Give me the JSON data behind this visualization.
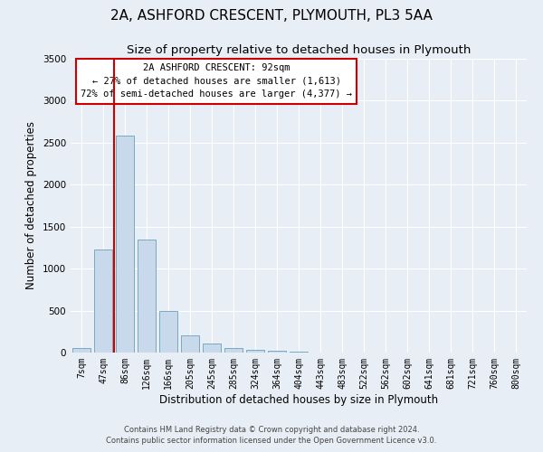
{
  "title": "2A, ASHFORD CRESCENT, PLYMOUTH, PL3 5AA",
  "subtitle": "Size of property relative to detached houses in Plymouth",
  "xlabel": "Distribution of detached houses by size in Plymouth",
  "ylabel": "Number of detached properties",
  "bar_labels": [
    "7sqm",
    "47sqm",
    "86sqm",
    "126sqm",
    "166sqm",
    "205sqm",
    "245sqm",
    "285sqm",
    "324sqm",
    "364sqm",
    "404sqm",
    "443sqm",
    "483sqm",
    "522sqm",
    "562sqm",
    "602sqm",
    "641sqm",
    "681sqm",
    "721sqm",
    "760sqm",
    "800sqm"
  ],
  "bar_values": [
    50,
    1230,
    2590,
    1350,
    500,
    200,
    110,
    50,
    30,
    20,
    10,
    5,
    3,
    0,
    0,
    0,
    0,
    0,
    0,
    0,
    0
  ],
  "bar_color": "#c8d9eb",
  "bar_edge_color": "#7aaabf",
  "marker_color": "#cc0000",
  "annotation_text_line1": "2A ASHFORD CRESCENT: 92sqm",
  "annotation_text_line2": "← 27% of detached houses are smaller (1,613)",
  "annotation_text_line3": "72% of semi-detached houses are larger (4,377) →",
  "ylim": [
    0,
    3500
  ],
  "yticks": [
    0,
    500,
    1000,
    1500,
    2000,
    2500,
    3000,
    3500
  ],
  "footer_line1": "Contains HM Land Registry data © Crown copyright and database right 2024.",
  "footer_line2": "Contains public sector information licensed under the Open Government Licence v3.0.",
  "bg_color": "#e8eef5",
  "plot_bg_color": "#e8eef5",
  "grid_color": "#ffffff",
  "title_fontsize": 11,
  "subtitle_fontsize": 9.5,
  "axis_label_fontsize": 8.5,
  "tick_fontsize": 7,
  "footer_fontsize": 6
}
